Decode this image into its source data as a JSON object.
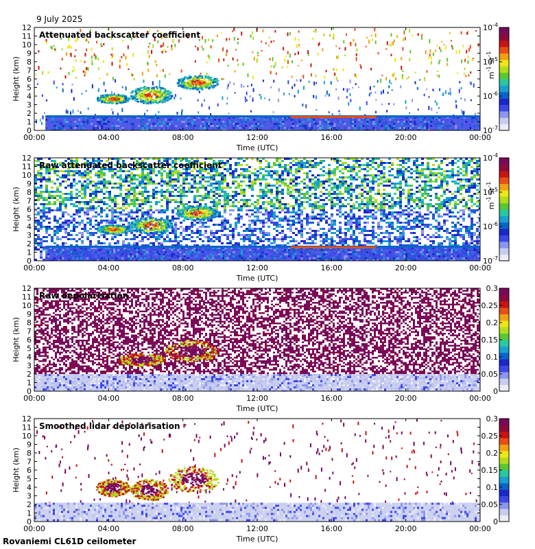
{
  "date": "9 July 2025",
  "footer": "Rovaniemi CL61D ceilometer",
  "colors": {
    "panel_bg": "#ffffff",
    "axis": "#000000",
    "colormap": [
      "#ececf6",
      "#c8cdf0",
      "#8c96ee",
      "#3c48e6",
      "#1a28c8",
      "#0a64c8",
      "#1aa0d0",
      "#28c8a0",
      "#5ac832",
      "#b4dc1e",
      "#f0e614",
      "#f0a014",
      "#e65014",
      "#c81414",
      "#8c0a3c",
      "#780a5a"
    ]
  },
  "chart_data": [
    {
      "type": "heatmap",
      "title": "Attenuated backscatter coefficient",
      "xlabel": "Time (UTC)",
      "ylabel": "Height (km)",
      "xticks": [
        "00:00",
        "04:00",
        "08:00",
        "12:00",
        "16:00",
        "20:00",
        "00:00"
      ],
      "xlim_hours": [
        0,
        24
      ],
      "ylim": [
        0,
        12
      ],
      "yticks": [
        0,
        1,
        2,
        3,
        4,
        5,
        6,
        7,
        8,
        9,
        10,
        11,
        12
      ],
      "colorbar": {
        "scale": "log",
        "ticks": [
          "10-7",
          "10-6",
          "10-5",
          "10-4"
        ],
        "label": "m-1 sr-1"
      },
      "variant": "backscatter",
      "features": [
        {
          "kind": "boundary_layer",
          "from_hour": 0.6,
          "to_hour": 24,
          "top_km": 1.6
        },
        {
          "kind": "cloud",
          "from_hour": 3.3,
          "to_hour": 5.1,
          "base_km": 3.2,
          "top_km": 4.3
        },
        {
          "kind": "cloud",
          "from_hour": 5.1,
          "to_hour": 7.4,
          "base_km": 3.2,
          "top_km": 5.2
        },
        {
          "kind": "cloud",
          "from_hour": 7.6,
          "to_hour": 9.9,
          "base_km": 4.8,
          "top_km": 6.5
        },
        {
          "kind": "cloud_layer",
          "from_hour": 13.8,
          "to_hour": 18.4,
          "height_km": 1.6
        }
      ]
    },
    {
      "type": "heatmap",
      "title": "Raw attenuated backscatter coefficient",
      "xlabel": "Time (UTC)",
      "ylabel": "Height (km)",
      "xticks": [
        "00:00",
        "04:00",
        "08:00",
        "12:00",
        "16:00",
        "20:00",
        "00:00"
      ],
      "xlim_hours": [
        0,
        24
      ],
      "ylim": [
        0,
        12
      ],
      "yticks": [
        0,
        1,
        2,
        3,
        4,
        5,
        6,
        7,
        8,
        9,
        10,
        11,
        12
      ],
      "colorbar": {
        "scale": "log",
        "ticks": [
          "10-7",
          "10-6",
          "10-5",
          "10-4"
        ],
        "label": "m-1 sr-1"
      },
      "variant": "raw_backscatter",
      "features": [
        {
          "kind": "boundary_layer",
          "from_hour": 0.6,
          "to_hour": 24,
          "top_km": 1.6
        },
        {
          "kind": "cloud",
          "from_hour": 3.3,
          "to_hour": 5.1,
          "base_km": 3.2,
          "top_km": 4.3
        },
        {
          "kind": "cloud",
          "from_hour": 5.1,
          "to_hour": 7.4,
          "base_km": 3.2,
          "top_km": 5.2
        },
        {
          "kind": "cloud",
          "from_hour": 7.6,
          "to_hour": 9.9,
          "base_km": 4.8,
          "top_km": 6.5
        },
        {
          "kind": "cloud_layer",
          "from_hour": 13.8,
          "to_hour": 18.4,
          "height_km": 1.6
        }
      ]
    },
    {
      "type": "heatmap",
      "title": "Raw depolarisation",
      "xlabel": "Time (UTC)",
      "ylabel": "Height (km)",
      "xticks": [
        "00:00",
        "04:00",
        "08:00",
        "12:00",
        "16:00",
        "20:00",
        "00:00"
      ],
      "xlim_hours": [
        0,
        24
      ],
      "ylim": [
        0,
        12
      ],
      "yticks": [
        0,
        1,
        2,
        3,
        4,
        5,
        6,
        7,
        8,
        9,
        10,
        11,
        12
      ],
      "colorbar": {
        "scale": "linear",
        "ticks": [
          "0",
          "0.05",
          "0.1",
          "0.15",
          "0.2",
          "0.25",
          "0.3"
        ],
        "range": [
          0,
          0.3
        ]
      },
      "variant": "raw_depol",
      "features": [
        {
          "kind": "boundary_layer",
          "from_hour": 0,
          "to_hour": 24,
          "top_km": 2.0
        },
        {
          "kind": "cloud",
          "from_hour": 4.5,
          "to_hour": 7.0,
          "base_km": 3.0,
          "top_km": 4.5
        },
        {
          "kind": "cloud",
          "from_hour": 7.0,
          "to_hour": 9.9,
          "base_km": 3.5,
          "top_km": 6.0
        }
      ]
    },
    {
      "type": "heatmap",
      "title": "Smoothed lidar depolarisation",
      "xlabel": "Time (UTC)",
      "ylabel": "Height (km)",
      "xticks": [
        "00:00",
        "04:00",
        "08:00",
        "12:00",
        "16:00",
        "20:00",
        "00:00"
      ],
      "xlim_hours": [
        0,
        24
      ],
      "ylim": [
        0,
        12
      ],
      "yticks": [
        0,
        1,
        2,
        3,
        4,
        5,
        6,
        7,
        8,
        9,
        10,
        11,
        12
      ],
      "colorbar": {
        "scale": "linear",
        "ticks": [
          "0",
          "0.05",
          "0.1",
          "0.15",
          "0.2",
          "0.25",
          "0.3"
        ],
        "range": [
          0,
          0.3
        ]
      },
      "variant": "smooth_depol",
      "features": [
        {
          "kind": "boundary_layer",
          "from_hour": 0,
          "to_hour": 24,
          "top_km": 2.2
        },
        {
          "kind": "cloud",
          "from_hour": 3.3,
          "to_hour": 5.1,
          "base_km": 3.0,
          "top_km": 5.0
        },
        {
          "kind": "cloud",
          "from_hour": 5.1,
          "to_hour": 7.2,
          "base_km": 2.5,
          "top_km": 5.0
        },
        {
          "kind": "cloud",
          "from_hour": 7.2,
          "to_hour": 9.9,
          "base_km": 3.5,
          "top_km": 6.5
        }
      ]
    }
  ]
}
